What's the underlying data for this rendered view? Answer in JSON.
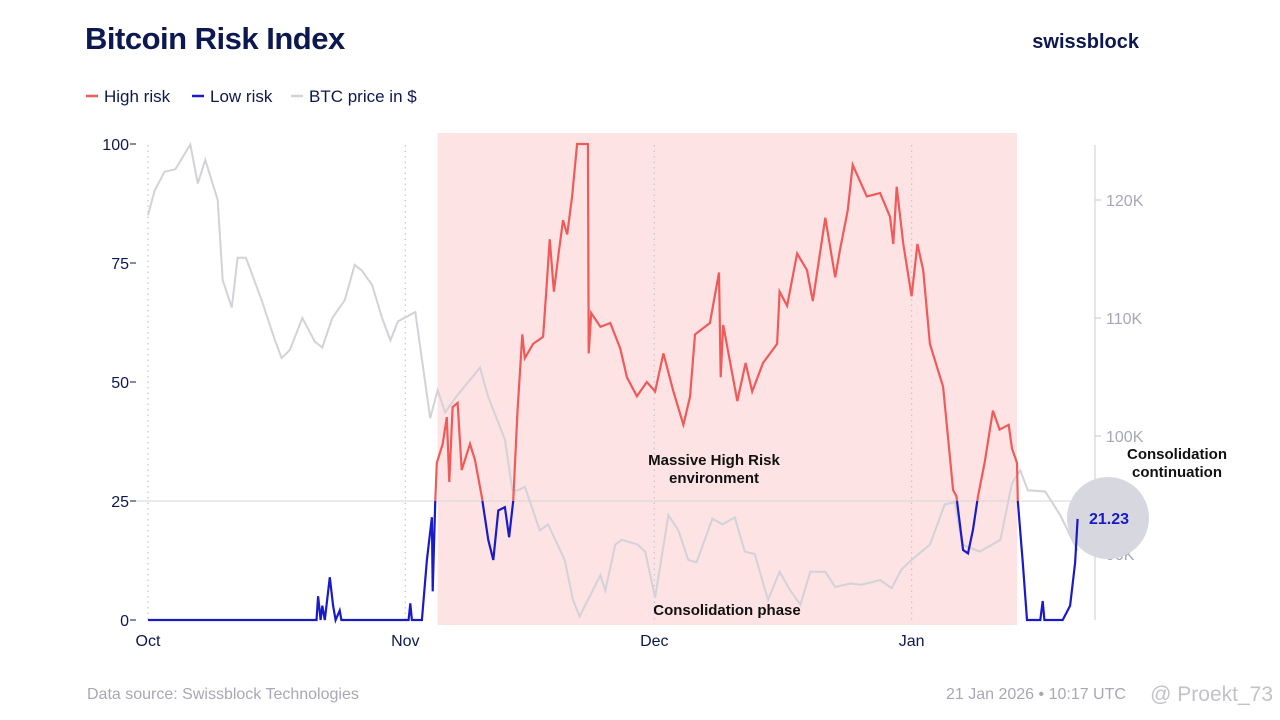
{
  "header": {
    "title": "Bitcoin Risk Index",
    "brand": "swissblock"
  },
  "legend": [
    {
      "label": "High risk",
      "color": "#f05a5a"
    },
    {
      "label": "Low risk",
      "color": "#1a1ac8"
    },
    {
      "label": "BTC price in $",
      "color": "#d2d2d8"
    }
  ],
  "footer": {
    "source": "Data source: Swissblock Technologies",
    "timestamp": "21 Jan 2026 • 10:17 UTC",
    "watermark": "@ Proekt_73"
  },
  "chart_data": {
    "type": "line",
    "title": "Bitcoin Risk Index",
    "x_unit": "days since Oct 1",
    "x_ticks": [
      {
        "label": "Oct",
        "day": 0
      },
      {
        "label": "Nov",
        "day": 31
      },
      {
        "label": "Dec",
        "day": 61
      },
      {
        "label": "Jan",
        "day": 92
      }
    ],
    "y_left": {
      "ticks": [
        "0",
        "25",
        "50",
        "75",
        "100"
      ],
      "range": [
        0,
        100
      ]
    },
    "y_right": {
      "ticks": [
        "90K",
        "100K",
        "110K",
        "120K"
      ],
      "tick_values": [
        90,
        100,
        110,
        120
      ],
      "range_k": [
        84.6,
        124.6
      ]
    },
    "threshold": 25,
    "shaded_region_days": [
      34.9,
      104.7
    ],
    "annotations": {
      "massive_line1": "Massive High Risk",
      "massive_line2": "environment",
      "consolidation": "Consolidation phase",
      "continuation_line1": "Consolidation",
      "continuation_line2": "continuation"
    },
    "last_value": "21.23",
    "risk_series": [
      [
        0,
        0
      ],
      [
        20.3,
        0
      ],
      [
        20.5,
        5
      ],
      [
        20.8,
        0
      ],
      [
        21,
        3
      ],
      [
        21.3,
        0
      ],
      [
        21.9,
        9
      ],
      [
        22.3,
        3
      ],
      [
        22.6,
        0
      ],
      [
        23.1,
        2
      ],
      [
        23.3,
        0
      ],
      [
        31.4,
        0
      ],
      [
        31.6,
        3.5
      ],
      [
        31.8,
        0
      ],
      [
        33,
        0
      ],
      [
        33.6,
        12.6
      ],
      [
        34.2,
        21.6
      ],
      [
        34.3,
        6
      ],
      [
        34.6,
        24.6
      ],
      [
        34.8,
        33
      ],
      [
        35.5,
        37
      ],
      [
        36,
        42.6
      ],
      [
        36.3,
        29
      ],
      [
        36.7,
        44.7
      ],
      [
        37.3,
        45.6
      ],
      [
        37.8,
        31.5
      ],
      [
        38.8,
        37
      ],
      [
        39.4,
        33.6
      ],
      [
        40.2,
        26
      ],
      [
        41,
        16.8
      ],
      [
        41.6,
        12.6
      ],
      [
        42.2,
        23
      ],
      [
        43,
        23.7
      ],
      [
        43.5,
        17.4
      ],
      [
        44,
        25
      ],
      [
        44.5,
        43.5
      ],
      [
        45.1,
        60
      ],
      [
        45.4,
        55
      ],
      [
        46.4,
        58
      ],
      [
        47.6,
        59.5
      ],
      [
        48.1,
        72
      ],
      [
        48.4,
        80
      ],
      [
        48.9,
        69
      ],
      [
        49.4,
        76
      ],
      [
        50,
        84
      ],
      [
        50.5,
        81
      ],
      [
        51.1,
        89
      ],
      [
        51.7,
        100
      ],
      [
        53,
        100
      ],
      [
        53.1,
        56
      ],
      [
        53.4,
        64.5
      ],
      [
        54.5,
        61.6
      ],
      [
        55.7,
        62.4
      ],
      [
        56.9,
        57
      ],
      [
        57.7,
        51
      ],
      [
        58.9,
        47
      ],
      [
        60.1,
        50
      ],
      [
        61.1,
        48
      ],
      [
        62.1,
        56
      ],
      [
        63.3,
        48
      ],
      [
        64.5,
        41
      ],
      [
        65.3,
        46.9
      ],
      [
        65.9,
        60
      ],
      [
        67.7,
        62.4
      ],
      [
        68.8,
        73
      ],
      [
        69,
        51
      ],
      [
        69.3,
        62
      ],
      [
        71,
        46
      ],
      [
        72,
        54
      ],
      [
        72.8,
        48
      ],
      [
        74.1,
        54
      ],
      [
        75.8,
        58
      ],
      [
        76.1,
        69
      ],
      [
        77,
        66
      ],
      [
        78.2,
        77
      ],
      [
        79.4,
        73.5
      ],
      [
        80.1,
        67
      ],
      [
        81.6,
        84.5
      ],
      [
        82.8,
        72
      ],
      [
        83.4,
        78
      ],
      [
        84.3,
        86
      ],
      [
        84.9,
        95.6
      ],
      [
        86.6,
        89
      ],
      [
        88.2,
        89.7
      ],
      [
        89.4,
        84.7
      ],
      [
        89.8,
        79
      ],
      [
        90.2,
        91
      ],
      [
        91,
        79
      ],
      [
        92,
        68
      ],
      [
        92.7,
        79
      ],
      [
        93.4,
        73.5
      ],
      [
        94.2,
        58
      ],
      [
        95.8,
        49
      ],
      [
        97,
        27.3
      ],
      [
        97.4,
        26
      ],
      [
        98.2,
        14.7
      ],
      [
        98.8,
        14
      ],
      [
        99.4,
        19
      ],
      [
        100,
        26
      ],
      [
        100.8,
        33
      ],
      [
        101.8,
        44
      ],
      [
        102.6,
        40
      ],
      [
        103.7,
        41
      ],
      [
        104.1,
        36
      ],
      [
        104.7,
        33
      ],
      [
        104.8,
        25
      ],
      [
        105.4,
        12
      ],
      [
        105.9,
        0
      ],
      [
        107.5,
        0
      ],
      [
        107.8,
        4
      ],
      [
        108,
        0
      ],
      [
        110.2,
        0
      ],
      [
        111.1,
        3
      ],
      [
        111.7,
        12
      ],
      [
        112,
        21.23
      ]
    ],
    "price_series_k": [
      [
        0,
        118.7
      ],
      [
        0.8,
        120.8
      ],
      [
        2,
        122.4
      ],
      [
        3.3,
        122.6
      ],
      [
        5.1,
        124.7
      ],
      [
        6,
        121.4
      ],
      [
        6.9,
        123.4
      ],
      [
        8.4,
        120
      ],
      [
        9,
        113.2
      ],
      [
        10.1,
        110.9
      ],
      [
        10.8,
        115.1
      ],
      [
        11.8,
        115.1
      ],
      [
        13.7,
        111.5
      ],
      [
        15.3,
        108.1
      ],
      [
        16.1,
        106.6
      ],
      [
        17.1,
        107.3
      ],
      [
        18.6,
        110
      ],
      [
        20.1,
        108
      ],
      [
        21,
        107.5
      ],
      [
        22.2,
        110
      ],
      [
        23.7,
        111.5
      ],
      [
        24.9,
        114.5
      ],
      [
        25.8,
        114
      ],
      [
        27,
        112.8
      ],
      [
        28.2,
        110
      ],
      [
        29.2,
        108.1
      ],
      [
        30.1,
        109.7
      ],
      [
        32.2,
        110.5
      ],
      [
        34,
        101.5
      ],
      [
        34.9,
        103.9
      ],
      [
        35.8,
        102
      ],
      [
        37,
        103.2
      ],
      [
        37.8,
        103.9
      ],
      [
        40,
        105.8
      ],
      [
        41,
        103.3
      ],
      [
        43,
        99.7
      ],
      [
        43.9,
        95.4
      ],
      [
        44.6,
        95.4
      ],
      [
        45.4,
        95.7
      ],
      [
        47.2,
        92
      ],
      [
        48.2,
        92.5
      ],
      [
        50.2,
        89.5
      ],
      [
        51.2,
        86.1
      ],
      [
        52,
        84.7
      ],
      [
        54.5,
        88.2
      ],
      [
        55.1,
        86.9
      ],
      [
        56.3,
        90.8
      ],
      [
        57.1,
        91.2
      ],
      [
        59,
        90.8
      ],
      [
        59.9,
        90.2
      ],
      [
        61.1,
        86.3
      ],
      [
        62.7,
        93.3
      ],
      [
        63.9,
        92
      ],
      [
        65.1,
        89.5
      ],
      [
        66.1,
        89.3
      ],
      [
        68,
        93
      ],
      [
        69.2,
        92.5
      ],
      [
        70.7,
        93.1
      ],
      [
        71.9,
        90.2
      ],
      [
        73.1,
        90
      ],
      [
        74.7,
        86.1
      ],
      [
        76.1,
        88.5
      ],
      [
        77.3,
        87
      ],
      [
        78.6,
        85.7
      ],
      [
        79.8,
        88.5
      ],
      [
        81.6,
        88.5
      ],
      [
        82.8,
        87.2
      ],
      [
        84.6,
        87.5
      ],
      [
        86,
        87.4
      ],
      [
        88.2,
        87.8
      ],
      [
        89.6,
        87.1
      ],
      [
        90.8,
        88.7
      ],
      [
        92,
        89.5
      ],
      [
        94.2,
        90.8
      ],
      [
        96,
        94.2
      ],
      [
        97.2,
        94.4
      ],
      [
        98.1,
        90.8
      ],
      [
        100.2,
        90.2
      ],
      [
        102.7,
        91.2
      ],
      [
        104.1,
        96
      ],
      [
        105.1,
        97.1
      ],
      [
        106,
        95.4
      ],
      [
        108.1,
        95.3
      ],
      [
        109.9,
        93.3
      ],
      [
        112,
        90.3
      ]
    ]
  }
}
